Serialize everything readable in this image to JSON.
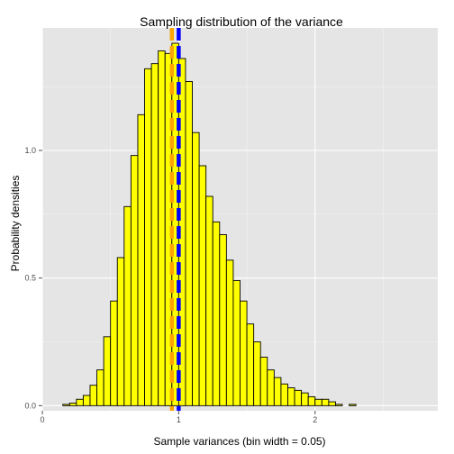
{
  "chart_data": {
    "type": "bar",
    "title": "Sampling distribution of the variance",
    "xlabel": "Sample variances (bin width = 0.05)",
    "ylabel": "Probability densities",
    "bin_width": 0.05,
    "bin_start": 0.1,
    "xlim": [
      0,
      2.9
    ],
    "ylim": [
      -0.02,
      1.48
    ],
    "x_ticks": [
      0,
      1,
      2
    ],
    "x_tick_labels": [
      "0",
      "1",
      "2"
    ],
    "y_ticks": [
      0.0,
      0.5,
      1.0
    ],
    "y_tick_labels": [
      "0.0",
      "0.5",
      "1.0"
    ],
    "grid": true,
    "values": [
      0.0,
      0.005,
      0.01,
      0.025,
      0.04,
      0.08,
      0.14,
      0.27,
      0.41,
      0.58,
      0.78,
      0.98,
      1.14,
      1.32,
      1.34,
      1.39,
      1.38,
      1.42,
      1.36,
      1.27,
      1.07,
      0.94,
      0.82,
      0.72,
      0.67,
      0.57,
      0.49,
      0.41,
      0.32,
      0.25,
      0.19,
      0.14,
      0.11,
      0.085,
      0.07,
      0.06,
      0.05,
      0.035,
      0.025,
      0.025,
      0.015,
      0.005,
      0.0,
      0.005,
      0.0,
      0.0,
      0.0,
      0.0,
      0.0,
      0.0,
      0.0,
      0.0,
      0.0,
      0.0
    ],
    "bar_fill": "#ffff00",
    "bar_stroke": "#000000",
    "vlines": [
      {
        "x": 0.95,
        "color": "#ffa500",
        "style": "dashed"
      },
      {
        "x": 1.0,
        "color": "#0000ff",
        "style": "dashed"
      }
    ],
    "panel_background": "#e5e5e5",
    "grid_color": "#ffffff"
  }
}
